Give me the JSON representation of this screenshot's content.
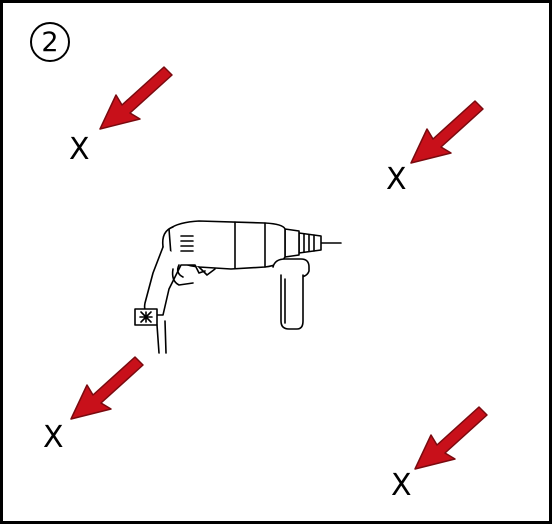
{
  "step_number": "2",
  "marks": [
    {
      "label": "X",
      "pointer": "red-arrow"
    },
    {
      "label": "X",
      "pointer": "red-arrow"
    },
    {
      "label": "X",
      "pointer": "red-arrow"
    },
    {
      "label": "X",
      "pointer": "red-arrow"
    }
  ],
  "colors": {
    "arrow": "#c8101a",
    "outline": "#000000",
    "background": "#ffffff"
  },
  "illustration": {
    "object": "hammer-drill-icon"
  }
}
